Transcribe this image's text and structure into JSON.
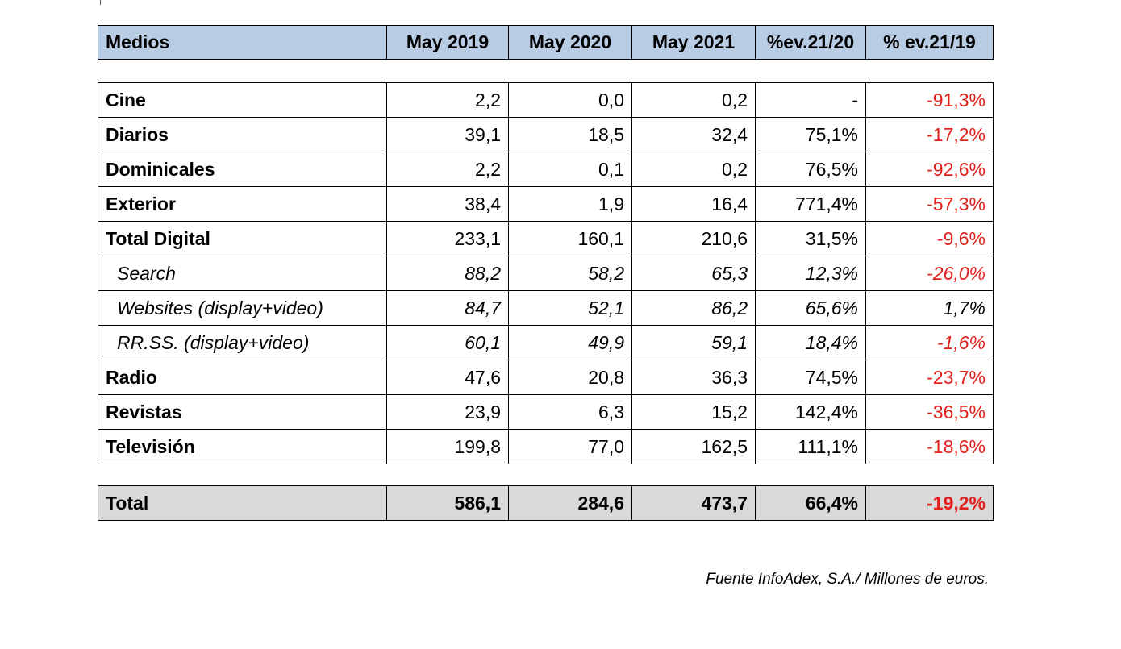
{
  "header": {
    "medios": "Medios",
    "may2019": "May 2019",
    "may2020": "May 2020",
    "may2021": "May 2021",
    "ev2120": "%ev.21/20",
    "ev2119": "% ev.21/19"
  },
  "rows": [
    {
      "name": "Cine",
      "y2019": "2,2",
      "y2020": "0,0",
      "y2021": "0,2",
      "ev2120": "-",
      "ev2119": "-91,3%"
    },
    {
      "name": "Diarios",
      "y2019": "39,1",
      "y2020": "18,5",
      "y2021": "32,4",
      "ev2120": "75,1%",
      "ev2119": "-17,2%"
    },
    {
      "name": "Dominicales",
      "y2019": "2,2",
      "y2020": "0,1",
      "y2021": "0,2",
      "ev2120": "76,5%",
      "ev2119": "-92,6%"
    },
    {
      "name": "Exterior",
      "y2019": "38,4",
      "y2020": "1,9",
      "y2021": "16,4",
      "ev2120": "771,4%",
      "ev2119": "-57,3%"
    },
    {
      "name": "Total Digital",
      "y2019": "233,1",
      "y2020": "160,1",
      "y2021": "210,6",
      "ev2120": "31,5%",
      "ev2119": "-9,6%"
    },
    {
      "name": "Search",
      "y2019": "88,2",
      "y2020": "58,2",
      "y2021": "65,3",
      "ev2120": "12,3%",
      "ev2119": "-26,0%"
    },
    {
      "name": "Websites (display+video)",
      "y2019": "84,7",
      "y2020": "52,1",
      "y2021": "86,2",
      "ev2120": "65,6%",
      "ev2119": "1,7%"
    },
    {
      "name": "RR.SS. (display+video)",
      "y2019": "60,1",
      "y2020": "49,9",
      "y2021": "59,1",
      "ev2120": "18,4%",
      "ev2119": "-1,6%"
    },
    {
      "name": "Radio",
      "y2019": "47,6",
      "y2020": "20,8",
      "y2021": "36,3",
      "ev2120": "74,5%",
      "ev2119": "-23,7%"
    },
    {
      "name": "Revistas",
      "y2019": "23,9",
      "y2020": "6,3",
      "y2021": "15,2",
      "ev2120": "142,4%",
      "ev2119": "-36,5%"
    },
    {
      "name": "Televisión",
      "y2019": "199,8",
      "y2020": "77,0",
      "y2021": "162,5",
      "ev2120": "111,1%",
      "ev2119": "-18,6%"
    }
  ],
  "total": {
    "name": "Total",
    "y2019": "586,1",
    "y2020": "284,6",
    "y2021": "473,7",
    "ev2120": "66,4%",
    "ev2119": "-19,2%"
  },
  "source": "Fuente InfoAdex, S.A./ Millones de euros.",
  "colors": {
    "header_bg": "#b8cce4",
    "total_bg": "#d9d9d9",
    "negative": "#e0201b"
  }
}
